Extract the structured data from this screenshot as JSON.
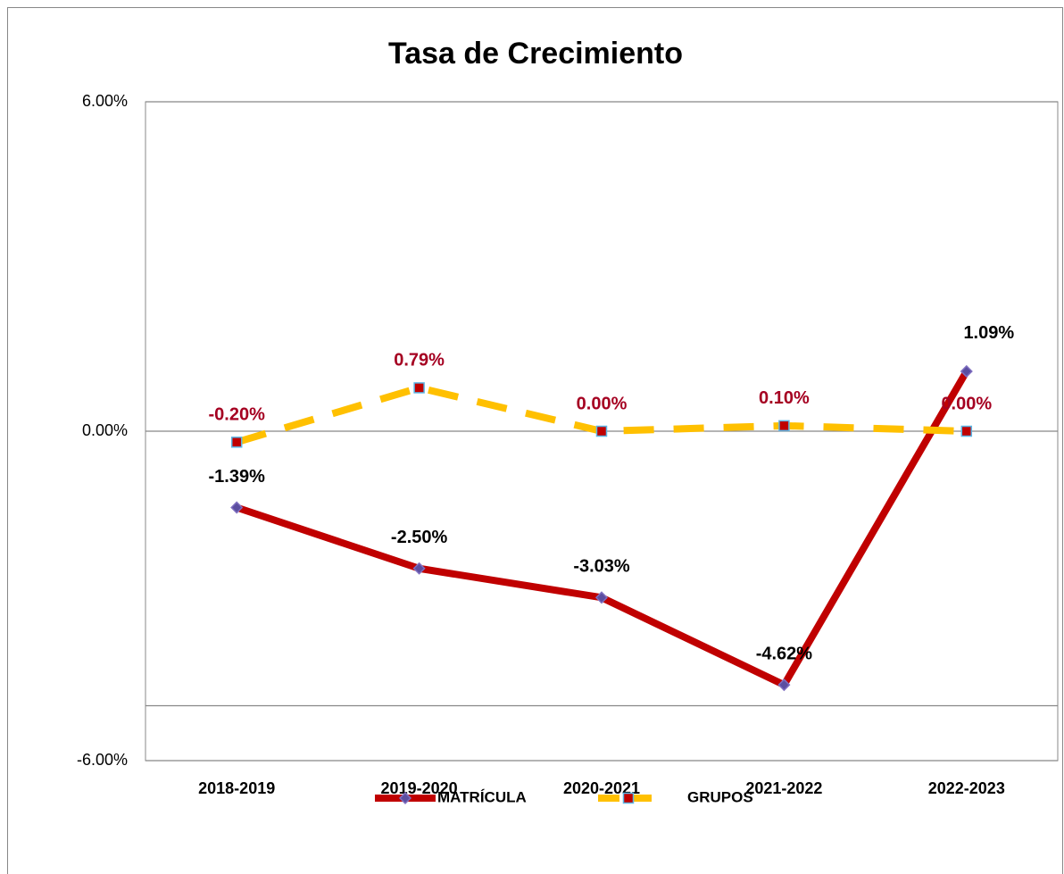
{
  "chart_data": {
    "type": "line",
    "title": "Tasa de Crecimiento",
    "categories": [
      "2018-2019",
      "2019-2020",
      "2020-2021",
      "2021-2022",
      "2022-2023"
    ],
    "series": [
      {
        "name": "MATRÍCULA",
        "color": "#c00000",
        "label_color": "#000000",
        "marker": "diamond",
        "dashed": false,
        "values": [
          -1.39,
          -2.5,
          -3.03,
          -4.62,
          1.09
        ],
        "value_labels": [
          "-1.39%",
          "-2.50%",
          "-3.03%",
          "-4.62%",
          "1.09%"
        ]
      },
      {
        "name": "GRUPOS",
        "color": "#ffc000",
        "label_color": "#a50021",
        "marker": "square",
        "dashed": true,
        "values": [
          -0.2,
          0.79,
          0.0,
          0.1,
          0.0
        ],
        "value_labels": [
          "-0.20%",
          "0.79%",
          "0.00%",
          "0.10%",
          "0.00%"
        ]
      }
    ],
    "ylim": [
      -6,
      6
    ],
    "yticks": [
      {
        "value": -6,
        "label": "-6.00%"
      },
      {
        "value": 0,
        "label": "0.00%"
      },
      {
        "value": 6,
        "label": "6.00%"
      }
    ],
    "reference_lines": [
      -5
    ],
    "grid": true,
    "legend": "bottom"
  }
}
